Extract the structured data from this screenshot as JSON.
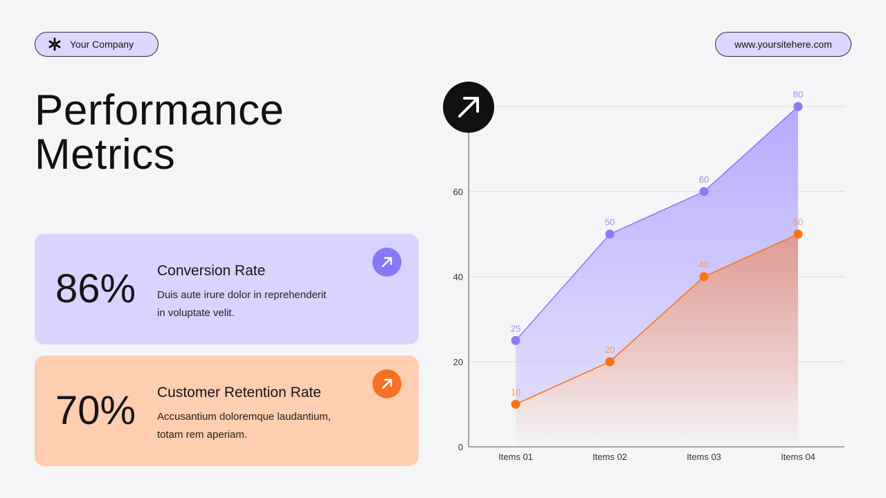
{
  "header": {
    "company_label": "Your Company",
    "website_label": "www.yoursitehere.com"
  },
  "title": {
    "line1": "Performance",
    "line2": "Metrics"
  },
  "metrics": [
    {
      "value": "86%",
      "label": "Conversion Rate",
      "description": "Duis aute irure dolor in reprehenderit in voluptate velit.",
      "badge_icon": "arrow-up-right-icon",
      "color": "#d9d4ff"
    },
    {
      "value": "70%",
      "label": "Customer Retention Rate",
      "description": "Accusantium doloremque laudantium, totam rem aperiam.",
      "badge_icon": "arrow-up-right-icon",
      "color": "#ffcdb0"
    }
  ],
  "chart_data": {
    "type": "area",
    "categories": [
      "Items 01",
      "Items 02",
      "Items 03",
      "Items 04"
    ],
    "series": [
      {
        "values": [
          25,
          50,
          60,
          80
        ],
        "color": "#8b7cf6"
      },
      {
        "values": [
          10,
          20,
          40,
          50
        ],
        "color": "#f97316"
      }
    ],
    "ylim": [
      0,
      80
    ],
    "yticks": [
      0,
      20,
      40,
      60
    ],
    "grid": true,
    "data_labels": true,
    "badge_icon": "arrow-up-right-icon"
  }
}
